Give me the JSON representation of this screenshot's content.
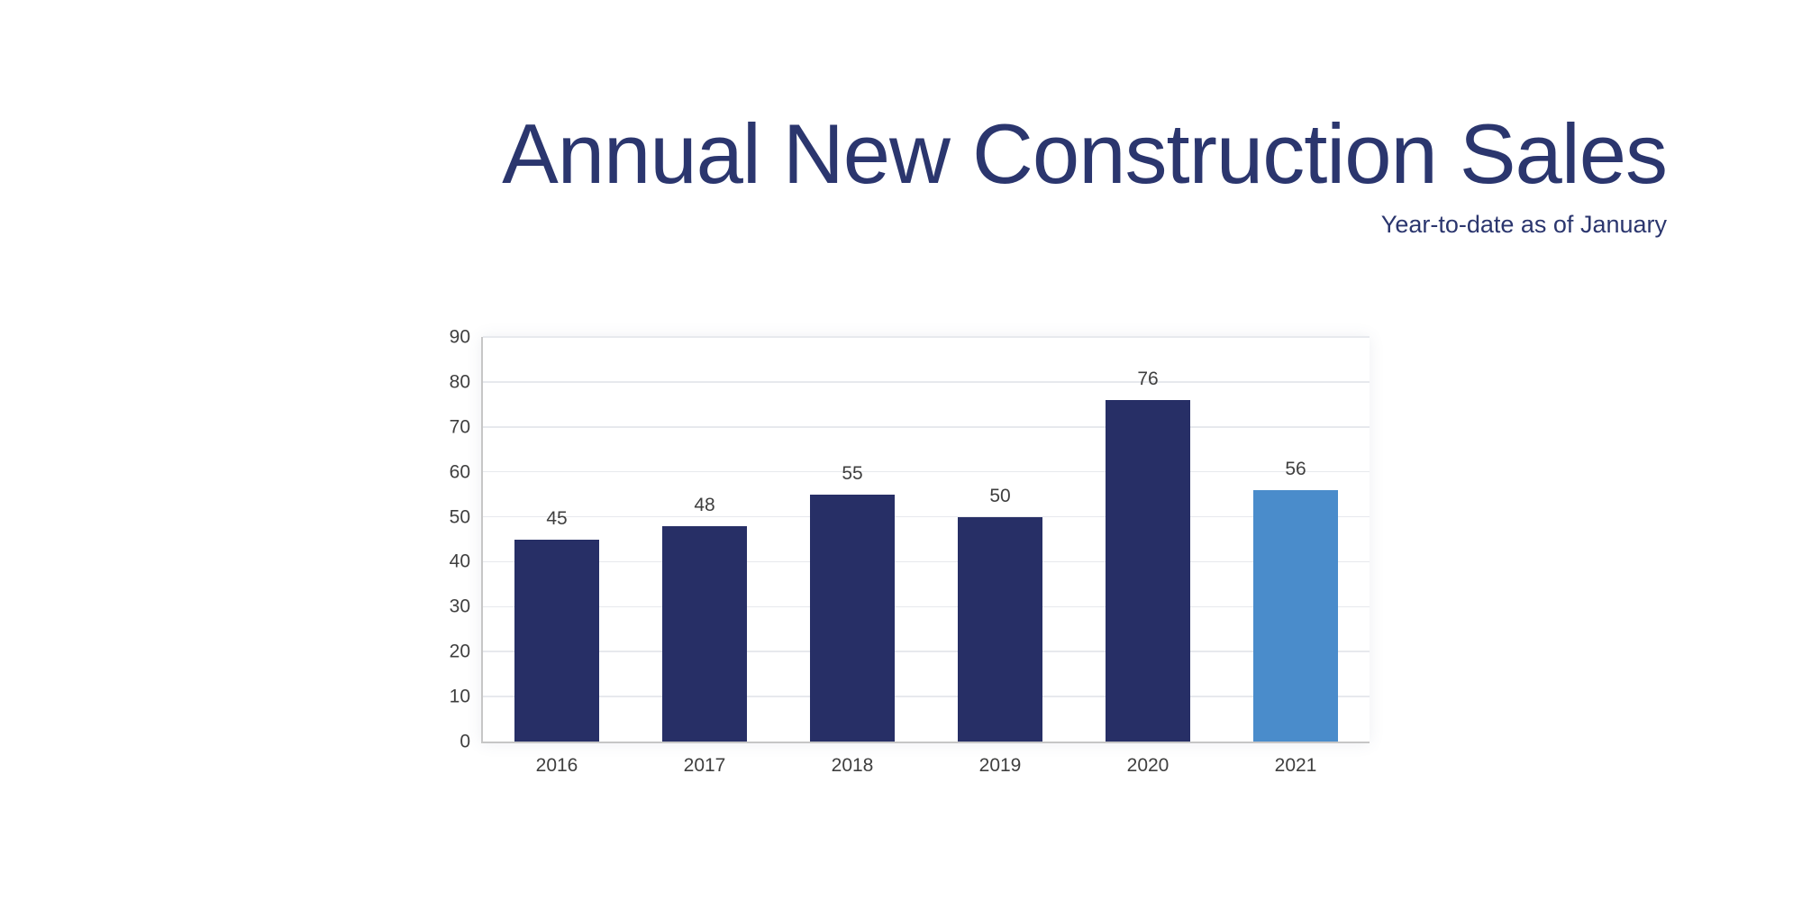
{
  "page": {
    "title": "Annual New Construction Sales",
    "subtitle": "Year-to-date as of January"
  },
  "colors": {
    "background": "#FFFFFF",
    "title_text": "#2B366E",
    "bar_navy": "#272F66",
    "bar_highlight_blue": "#4A8CCB",
    "axis_label": "#3F3F3F",
    "gridline": "#E7E9ED",
    "axis_line": "#C6C6C6"
  },
  "chart_data": {
    "type": "bar",
    "title": "Annual New Construction Sales",
    "subtitle": "Year-to-date as of January",
    "categories": [
      "2016",
      "2017",
      "2018",
      "2019",
      "2020",
      "2021"
    ],
    "values": [
      45,
      48,
      55,
      50,
      76,
      56
    ],
    "data_labels": [
      "45",
      "48",
      "55",
      "50",
      "76",
      "56"
    ],
    "bar_colors": [
      "#272F66",
      "#272F66",
      "#272F66",
      "#272F66",
      "#272F66",
      "#4A8CCB"
    ],
    "highlighted_category": "2021",
    "xlabel": "",
    "ylabel": "",
    "ylim": [
      0,
      90
    ],
    "yticks": [
      0,
      10,
      20,
      30,
      40,
      50,
      60,
      70,
      80,
      90
    ],
    "grid": true,
    "legend": false,
    "data_labels_shown": true
  }
}
